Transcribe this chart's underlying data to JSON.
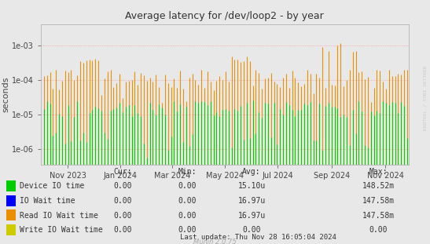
{
  "title": "Average latency for /dev/loop2 - by year",
  "ylabel": "seconds",
  "background_color": "#e8e8e8",
  "plot_bg_color": "#e8e8e8",
  "grid_color": "#ff9999",
  "ymin": 3.5e-07,
  "ymax": 0.004,
  "xmin": 1696118400,
  "xmax": 1732838400,
  "legend_entries": [
    {
      "label": "Device IO time",
      "color": "#00cc00"
    },
    {
      "label": "IO Wait time",
      "color": "#0000ff"
    },
    {
      "label": "Read IO Wait time",
      "color": "#ea8f00"
    },
    {
      "label": "Write IO Wait time",
      "color": "#cccc00"
    }
  ],
  "legend_cur": [
    "0.00",
    "0.00",
    "0.00",
    "0.00"
  ],
  "legend_min": [
    "0.00",
    "0.00",
    "0.00",
    "0.00"
  ],
  "legend_avg": [
    "15.10u",
    "16.97u",
    "16.97u",
    "0.00"
  ],
  "legend_max": [
    "148.52m",
    "147.58m",
    "147.58m",
    "0.00"
  ],
  "last_update": "Last update: Thu Nov 28 16:05:04 2024",
  "munin_version": "Munin 2.0.75",
  "watermark": "RRDTOOL / TOBI OETIKER",
  "tick_positions": [
    1698796800,
    1704067200,
    1709251200,
    1714521600,
    1719792000,
    1725148800,
    1730505600
  ],
  "tick_labels": [
    "Nov 2023",
    "Jan 2024",
    "Mar 2024",
    "May 2024",
    "Jul 2024",
    "Sep 2024",
    "Nov 2024"
  ],
  "yticks": [
    1e-06,
    1e-05,
    0.0001,
    0.001
  ]
}
